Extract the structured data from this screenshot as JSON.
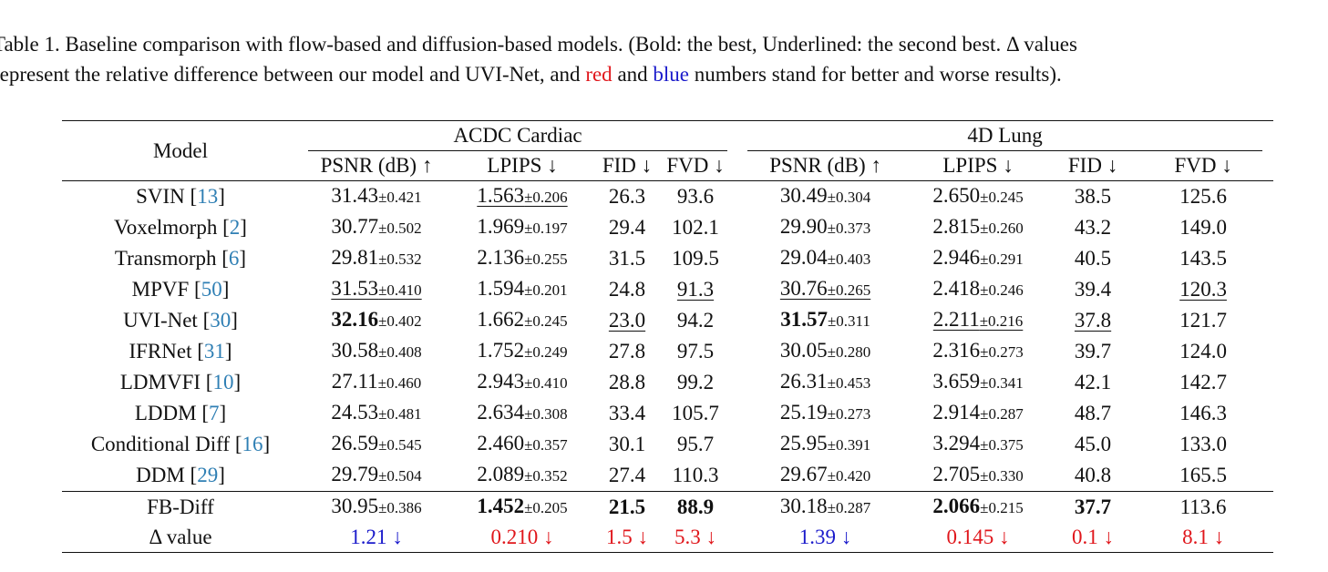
{
  "caption": {
    "line1": "Table 1.  Baseline comparison with flow-based and diffusion-based models.  (Bold: the best, Underlined: the second best.  Δ values",
    "line2_before": "represent the relative difference between our model and UVI-Net, and ",
    "line2_red": "red",
    "line2_mid": " and ",
    "line2_blue": "blue",
    "line2_after": " numbers stand for better and worse results)."
  },
  "table": {
    "model_header": "Model",
    "groups": [
      "ACDC Cardiac",
      "4D Lung"
    ],
    "metrics": [
      "PSNR (dB) ↑",
      "LPIPS ↓",
      "FID ↓",
      "FVD ↓",
      "PSNR (dB) ↑",
      "LPIPS ↓",
      "FID ↓",
      "FVD ↓"
    ],
    "rows": [
      {
        "name": "SVIN",
        "cite": "13",
        "c": [
          {
            "v": "31.43",
            "pm": "±0.421"
          },
          {
            "v": "1.563",
            "pm": "±0.206",
            "u": true
          },
          {
            "v": "26.3"
          },
          {
            "v": "93.6"
          },
          {
            "v": "30.49",
            "pm": "±0.304"
          },
          {
            "v": "2.650",
            "pm": "±0.245"
          },
          {
            "v": "38.5"
          },
          {
            "v": "125.6"
          }
        ]
      },
      {
        "name": "Voxelmorph",
        "cite": "2",
        "c": [
          {
            "v": "30.77",
            "pm": "±0.502"
          },
          {
            "v": "1.969",
            "pm": "±0.197"
          },
          {
            "v": "29.4"
          },
          {
            "v": "102.1"
          },
          {
            "v": "29.90",
            "pm": "±0.373"
          },
          {
            "v": "2.815",
            "pm": "±0.260"
          },
          {
            "v": "43.2"
          },
          {
            "v": "149.0"
          }
        ]
      },
      {
        "name": "Transmorph",
        "cite": "6",
        "c": [
          {
            "v": "29.81",
            "pm": "±0.532"
          },
          {
            "v": "2.136",
            "pm": "±0.255"
          },
          {
            "v": "31.5"
          },
          {
            "v": "109.5"
          },
          {
            "v": "29.04",
            "pm": "±0.403"
          },
          {
            "v": "2.946",
            "pm": "±0.291"
          },
          {
            "v": "40.5"
          },
          {
            "v": "143.5"
          }
        ]
      },
      {
        "name": "MPVF",
        "cite": "50",
        "c": [
          {
            "v": "31.53",
            "pm": "±0.410",
            "u": true
          },
          {
            "v": "1.594",
            "pm": "±0.201"
          },
          {
            "v": "24.8"
          },
          {
            "v": "91.3",
            "u": true
          },
          {
            "v": "30.76",
            "pm": "±0.265",
            "u": true
          },
          {
            "v": "2.418",
            "pm": "±0.246"
          },
          {
            "v": "39.4"
          },
          {
            "v": "120.3",
            "u": true
          }
        ]
      },
      {
        "name": "UVI-Net",
        "cite": "30",
        "c": [
          {
            "v": "32.16",
            "pm": "±0.402",
            "b": true
          },
          {
            "v": "1.662",
            "pm": "±0.245"
          },
          {
            "v": "23.0",
            "u": true
          },
          {
            "v": "94.2"
          },
          {
            "v": "31.57",
            "pm": "±0.311",
            "b": true
          },
          {
            "v": "2.211",
            "pm": "±0.216",
            "u": true
          },
          {
            "v": "37.8",
            "u": true
          },
          {
            "v": "121.7"
          }
        ]
      },
      {
        "name": "IFRNet",
        "cite": "31",
        "c": [
          {
            "v": "30.58",
            "pm": "±0.408"
          },
          {
            "v": "1.752",
            "pm": "±0.249"
          },
          {
            "v": "27.8"
          },
          {
            "v": "97.5"
          },
          {
            "v": "30.05",
            "pm": "±0.280"
          },
          {
            "v": "2.316",
            "pm": "±0.273"
          },
          {
            "v": "39.7"
          },
          {
            "v": "124.0"
          }
        ]
      },
      {
        "name": "LDMVFI",
        "cite": "10",
        "c": [
          {
            "v": "27.11",
            "pm": "±0.460"
          },
          {
            "v": "2.943",
            "pm": "±0.410"
          },
          {
            "v": "28.8"
          },
          {
            "v": "99.2"
          },
          {
            "v": "26.31",
            "pm": "±0.453"
          },
          {
            "v": "3.659",
            "pm": "±0.341"
          },
          {
            "v": "42.1"
          },
          {
            "v": "142.7"
          }
        ]
      },
      {
        "name": "LDDM",
        "cite": "7",
        "c": [
          {
            "v": "24.53",
            "pm": "±0.481"
          },
          {
            "v": "2.634",
            "pm": "±0.308"
          },
          {
            "v": "33.4"
          },
          {
            "v": "105.7"
          },
          {
            "v": "25.19",
            "pm": "±0.273"
          },
          {
            "v": "2.914",
            "pm": "±0.287"
          },
          {
            "v": "48.7"
          },
          {
            "v": "146.3"
          }
        ]
      },
      {
        "name": "Conditional Diff",
        "cite": "16",
        "c": [
          {
            "v": "26.59",
            "pm": "±0.545"
          },
          {
            "v": "2.460",
            "pm": "±0.357"
          },
          {
            "v": "30.1"
          },
          {
            "v": "95.7"
          },
          {
            "v": "25.95",
            "pm": "±0.391"
          },
          {
            "v": "3.294",
            "pm": "±0.375"
          },
          {
            "v": "45.0"
          },
          {
            "v": "133.0"
          }
        ]
      },
      {
        "name": "DDM",
        "cite": "29",
        "c": [
          {
            "v": "29.79",
            "pm": "±0.504"
          },
          {
            "v": "2.089",
            "pm": "±0.352"
          },
          {
            "v": "27.4"
          },
          {
            "v": "110.3"
          },
          {
            "v": "29.67",
            "pm": "±0.420"
          },
          {
            "v": "2.705",
            "pm": "±0.330"
          },
          {
            "v": "40.8"
          },
          {
            "v": "165.5"
          }
        ]
      }
    ],
    "ours": {
      "name": "FB-Diff",
      "c": [
        {
          "v": "30.95",
          "pm": "±0.386"
        },
        {
          "v": "1.452",
          "pm": "±0.205",
          "b": true
        },
        {
          "v": "21.5",
          "b": true
        },
        {
          "v": "88.9",
          "b": true
        },
        {
          "v": "30.18",
          "pm": "±0.287"
        },
        {
          "v": "2.066",
          "pm": "±0.215",
          "b": true
        },
        {
          "v": "37.7",
          "b": true
        },
        {
          "v": "113.6"
        }
      ]
    },
    "delta": {
      "name": "Δ value",
      "c": [
        {
          "v": "1.21 ↓",
          "color": "blue"
        },
        {
          "v": "0.210 ↓",
          "color": "red"
        },
        {
          "v": "1.5 ↓",
          "color": "red"
        },
        {
          "v": "5.3 ↓",
          "color": "red"
        },
        {
          "v": "1.39 ↓",
          "color": "blue"
        },
        {
          "v": "0.145 ↓",
          "color": "red"
        },
        {
          "v": "0.1 ↓",
          "color": "red"
        },
        {
          "v": "8.1 ↓",
          "color": "red"
        }
      ]
    }
  }
}
